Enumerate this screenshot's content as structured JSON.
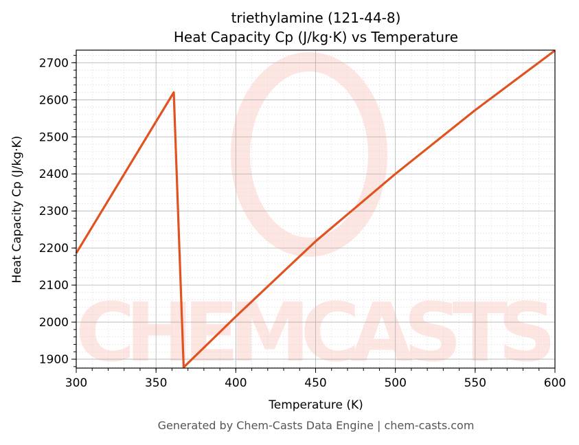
{
  "chart_data": {
    "type": "line",
    "title": "triethylamine (121-44-8)",
    "subtitle": "Heat Capacity Cp (J/kg·K) vs Temperature",
    "xlabel": "Temperature (K)",
    "ylabel": "Heat Capacity Cp (J/kg·K)",
    "xlim": [
      300,
      600
    ],
    "ylim": [
      1876,
      2734
    ],
    "xticks": [
      300,
      350,
      400,
      450,
      500,
      550,
      600
    ],
    "yticks": [
      1900,
      2000,
      2100,
      2200,
      2300,
      2400,
      2500,
      2600,
      2700
    ],
    "grid": true,
    "series": [
      {
        "name": "Cp",
        "color": "#e0521f",
        "x": [
          300,
          361.1,
          367.3,
          400,
          450,
          500,
          550,
          600
        ],
        "y": [
          2186,
          2620,
          1878,
          2015,
          2218,
          2400,
          2572,
          2733
        ]
      }
    ],
    "watermark": "CHEMCASTS",
    "footer": "Generated by Chem-Casts Data Engine | chem-casts.com"
  }
}
